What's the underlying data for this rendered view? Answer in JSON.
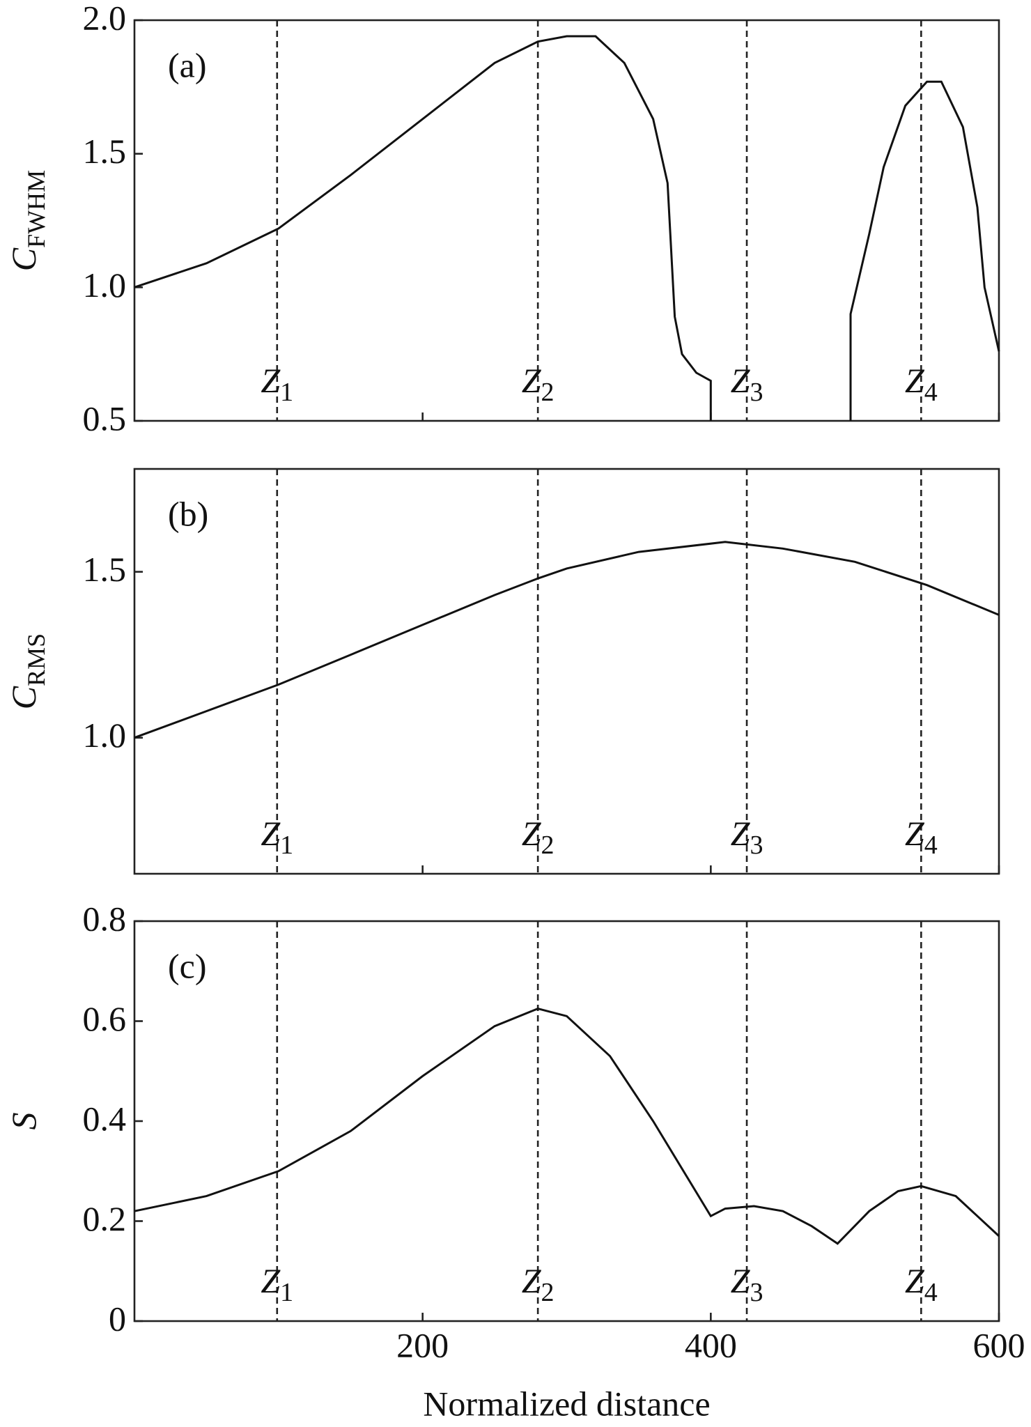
{
  "chart_data": [
    {
      "type": "line",
      "panel_label": "(a)",
      "ylabel": {
        "text": "C",
        "sub": "FWHM"
      },
      "xlim": [
        0,
        600
      ],
      "xticks": [
        200,
        400,
        600
      ],
      "ylim": [
        0.5,
        2.0
      ],
      "yticks": [
        0.5,
        {
          "value": 1,
          "label": "1.0"
        },
        1.5,
        {
          "value": 2,
          "label": "2.0"
        }
      ],
      "color": "#111111",
      "x": [
        0,
        50,
        100,
        150,
        200,
        250,
        280,
        300,
        320,
        340,
        360,
        370,
        375,
        380,
        390,
        400,
        400,
        450,
        497,
        497,
        510,
        520,
        535,
        550,
        560,
        575,
        585,
        590,
        600
      ],
      "values": [
        1.0,
        1.09,
        1.22,
        1.42,
        1.63,
        1.84,
        1.92,
        1.94,
        1.94,
        1.84,
        1.63,
        1.39,
        0.89,
        0.75,
        0.68,
        0.65,
        0.5,
        null,
        0.5,
        0.9,
        1.2,
        1.45,
        1.68,
        1.77,
        1.77,
        1.6,
        1.3,
        1.0,
        0.76
      ],
      "markers": [
        {
          "label": "Z",
          "sub": "1",
          "x": 99
        },
        {
          "label": "Z",
          "sub": "2",
          "x": 280
        },
        {
          "label": "Z",
          "sub": "3",
          "x": 425
        },
        {
          "label": "Z",
          "sub": "4",
          "x": 546
        }
      ]
    },
    {
      "type": "line",
      "panel_label": "(b)",
      "ylabel": {
        "text": "C",
        "sub": "RMS"
      },
      "xlim": [
        0,
        600
      ],
      "xticks": [
        200,
        400,
        600
      ],
      "ylim": [
        0.59,
        1.81
      ],
      "yticks": [
        {
          "value": 1,
          "label": "1.0"
        },
        1.5
      ],
      "color": "#111111",
      "x": [
        0,
        50,
        100,
        150,
        200,
        250,
        280,
        300,
        350,
        410,
        450,
        500,
        550,
        600
      ],
      "values": [
        1.0,
        1.08,
        1.16,
        1.25,
        1.34,
        1.43,
        1.48,
        1.51,
        1.56,
        1.59,
        1.57,
        1.53,
        1.46,
        1.37
      ],
      "markers": [
        {
          "label": "Z",
          "sub": "1",
          "x": 99
        },
        {
          "label": "Z",
          "sub": "2",
          "x": 280
        },
        {
          "label": "Z",
          "sub": "3",
          "x": 425
        },
        {
          "label": "Z",
          "sub": "4",
          "x": 546
        }
      ]
    },
    {
      "type": "line",
      "panel_label": "(c)",
      "ylabel": {
        "text": "S"
      },
      "xlabel": "Normalized distance",
      "xlim": [
        0,
        600
      ],
      "xticks": [
        200,
        400,
        600
      ],
      "ylim": [
        0,
        0.8
      ],
      "yticks": [
        0,
        0.2,
        0.4,
        0.6,
        0.8
      ],
      "color": "#111111",
      "x": [
        0,
        50,
        100,
        150,
        200,
        250,
        280,
        300,
        330,
        360,
        400,
        410,
        430,
        450,
        470,
        488,
        510,
        530,
        546,
        570,
        600
      ],
      "values": [
        0.22,
        0.25,
        0.3,
        0.38,
        0.49,
        0.59,
        0.625,
        0.61,
        0.53,
        0.4,
        0.21,
        0.225,
        0.23,
        0.22,
        0.19,
        0.155,
        0.22,
        0.26,
        0.27,
        0.25,
        0.17
      ],
      "markers": [
        {
          "label": "Z",
          "sub": "1",
          "x": 99
        },
        {
          "label": "Z",
          "sub": "2",
          "x": 280
        },
        {
          "label": "Z",
          "sub": "3",
          "x": 425
        },
        {
          "label": "Z",
          "sub": "4",
          "x": 546
        }
      ]
    }
  ]
}
